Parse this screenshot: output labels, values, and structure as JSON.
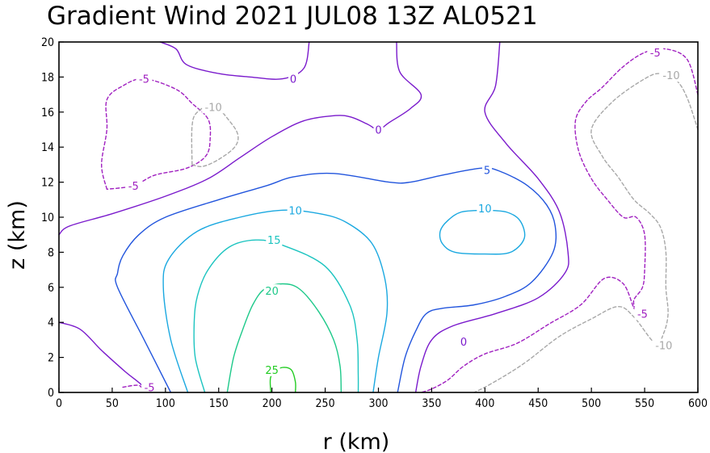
{
  "chart_data": {
    "type": "contour",
    "title": "Gradient Wind 2021 JUL08 13Z  AL0521",
    "xlabel": "r (km)",
    "ylabel": "z (km)",
    "xlim": [
      0,
      600
    ],
    "ylim": [
      0,
      20
    ],
    "xticks": [
      0,
      50,
      100,
      150,
      200,
      250,
      300,
      350,
      400,
      450,
      500,
      550,
      600
    ],
    "yticks": [
      0,
      2,
      4,
      6,
      8,
      10,
      12,
      14,
      16,
      18,
      20
    ],
    "grid": false,
    "colors": {
      "c25": "#22cc22",
      "c20": "#1ec98a",
      "c15": "#1cc4c0",
      "c10": "#1aa8e0",
      "c5": "#2255dd",
      "c0": "#7a1acc",
      "cneg5": "#a020c0",
      "cneg10": "#a8a8a8"
    },
    "contours": [
      {
        "level": 25,
        "label": "25",
        "color": "#22cc22",
        "dashed": false,
        "points": [
          [
            199,
            0
          ],
          [
            199,
            0.9
          ],
          [
            208,
            1.4
          ],
          [
            218,
            1.3
          ],
          [
            222,
            0.6
          ],
          [
            222,
            0
          ]
        ],
        "labels": [
          {
            "x": 200,
            "y": 1.3
          }
        ]
      },
      {
        "level": 20,
        "label": "20",
        "color": "#1ec98a",
        "dashed": false,
        "points": [
          [
            158,
            0
          ],
          [
            164,
            2
          ],
          [
            172,
            3.5
          ],
          [
            182,
            5
          ],
          [
            193,
            5.9
          ],
          [
            210,
            6.2
          ],
          [
            226,
            5.9
          ],
          [
            244,
            4.6
          ],
          [
            258,
            3
          ],
          [
            264,
            1.5
          ],
          [
            265,
            0
          ]
        ],
        "labels": [
          {
            "x": 200,
            "y": 5.8
          }
        ]
      },
      {
        "level": 15,
        "label": "15",
        "color": "#1cc4c0",
        "dashed": false,
        "points": [
          [
            137,
            0
          ],
          [
            128,
            2
          ],
          [
            127,
            4
          ],
          [
            130,
            5.5
          ],
          [
            140,
            7
          ],
          [
            160,
            8.3
          ],
          [
            185,
            8.7
          ],
          [
            210,
            8.4
          ],
          [
            250,
            7.2
          ],
          [
            273,
            5
          ],
          [
            280,
            3
          ],
          [
            281,
            1
          ],
          [
            281,
            0
          ]
        ],
        "labels": [
          {
            "x": 202,
            "y": 8.7
          }
        ]
      },
      {
        "level": 10,
        "label": "10",
        "color": "#1aa8e0",
        "dashed": false,
        "points": [
          [
            121,
            0
          ],
          [
            105,
            3
          ],
          [
            98,
            6
          ],
          [
            103,
            7.6
          ],
          [
            130,
            9.2
          ],
          [
            170,
            10
          ],
          [
            210,
            10.4
          ],
          [
            245,
            10.2
          ],
          [
            270,
            9.7
          ],
          [
            294,
            8.5
          ],
          [
            306,
            6.5
          ],
          [
            308,
            4.5
          ],
          [
            300,
            2
          ],
          [
            295,
            0
          ]
        ],
        "labels": [
          {
            "x": 222,
            "y": 10.4
          }
        ]
      },
      {
        "level": 10,
        "label": "10",
        "color": "#1aa8e0",
        "dashed": false,
        "points": [
          [
            400,
            10.4
          ],
          [
            378,
            10.3
          ],
          [
            365,
            9.8
          ],
          [
            358,
            9.2
          ],
          [
            360,
            8.5
          ],
          [
            372,
            8
          ],
          [
            400,
            7.9
          ],
          [
            424,
            8
          ],
          [
            437,
            8.8
          ],
          [
            433,
            9.8
          ],
          [
            420,
            10.3
          ],
          [
            400,
            10.4
          ]
        ],
        "labels": [
          {
            "x": 400,
            "y": 10.5
          }
        ]
      },
      {
        "level": 5,
        "label": "5",
        "color": "#2255dd",
        "dashed": false,
        "points": [
          [
            105,
            0
          ],
          [
            80,
            3
          ],
          [
            55,
            6
          ],
          [
            55,
            6.8
          ],
          [
            60,
            7.8
          ],
          [
            75,
            9
          ],
          [
            100,
            10
          ],
          [
            150,
            11
          ],
          [
            195,
            11.8
          ],
          [
            220,
            12.3
          ],
          [
            258,
            12.5
          ],
          [
            310,
            12
          ],
          [
            330,
            12
          ],
          [
            360,
            12.4
          ],
          [
            397,
            12.8
          ],
          [
            415,
            12.6
          ],
          [
            440,
            11.8
          ],
          [
            458,
            10.7
          ],
          [
            466,
            9.5
          ],
          [
            464,
            8
          ],
          [
            444,
            6.3
          ],
          [
            420,
            5.5
          ],
          [
            390,
            5
          ],
          [
            360,
            4.8
          ],
          [
            345,
            4.5
          ],
          [
            335,
            3.5
          ],
          [
            325,
            2
          ],
          [
            318,
            0
          ]
        ],
        "labels": [
          {
            "x": 402,
            "y": 12.7
          }
        ]
      },
      {
        "level": 0,
        "label": "0",
        "color": "#7a1acc",
        "dashed": false,
        "points": [
          [
            0,
            9
          ],
          [
            10,
            9.5
          ],
          [
            50,
            10.2
          ],
          [
            100,
            11.2
          ],
          [
            140,
            12.2
          ],
          [
            170,
            13.4
          ],
          [
            200,
            14.6
          ],
          [
            230,
            15.5
          ],
          [
            260,
            15.8
          ],
          [
            275,
            15.7
          ],
          [
            290,
            15.3
          ],
          [
            300,
            15
          ],
          [
            310,
            15.4
          ],
          [
            330,
            16.2
          ],
          [
            340,
            17
          ],
          [
            320,
            18.3
          ],
          [
            317,
            20
          ]
        ],
        "labels": [
          {
            "x": 300,
            "y": 15
          }
        ]
      },
      {
        "level": 0,
        "label": "0",
        "color": "#7a1acc",
        "dashed": false,
        "points": [
          [
            0,
            4
          ],
          [
            20,
            3.6
          ],
          [
            40,
            2.4
          ],
          [
            62,
            1.2
          ],
          [
            78,
            0.4
          ],
          [
            80,
            0
          ]
        ],
        "labels": []
      },
      {
        "level": 0,
        "label": "0",
        "color": "#7a1acc",
        "dashed": false,
        "points": [
          [
            95,
            20
          ],
          [
            110,
            19.6
          ],
          [
            120,
            18.7
          ],
          [
            150,
            18.2
          ],
          [
            180,
            18
          ],
          [
            210,
            17.9
          ],
          [
            230,
            18.5
          ],
          [
            235,
            20
          ]
        ],
        "labels": [
          {
            "x": 220,
            "y": 17.9
          }
        ]
      },
      {
        "level": 0,
        "label": "0",
        "color": "#7a1acc",
        "dashed": false,
        "points": [
          [
            414,
            20
          ],
          [
            410,
            17.5
          ],
          [
            400,
            16
          ],
          [
            420,
            14.2
          ],
          [
            450,
            12.2
          ],
          [
            470,
            10.3
          ],
          [
            478,
            8
          ],
          [
            475,
            6.8
          ],
          [
            450,
            5.4
          ],
          [
            410,
            4.5
          ],
          [
            370,
            3.8
          ],
          [
            350,
            3
          ],
          [
            340,
            1.5
          ],
          [
            335,
            0
          ]
        ],
        "labels": [
          {
            "x": 380,
            "y": 2.9
          }
        ]
      },
      {
        "level": -5,
        "label": "-5",
        "color": "#a020c0",
        "dashed": true,
        "points": [
          [
            45,
            11.6
          ],
          [
            40,
            13
          ],
          [
            45,
            15
          ],
          [
            45,
            16.7
          ],
          [
            60,
            17.5
          ],
          [
            80,
            17.9
          ],
          [
            110,
            17.3
          ],
          [
            125,
            16.5
          ],
          [
            140,
            15.6
          ],
          [
            142,
            14.5
          ],
          [
            138,
            13.5
          ],
          [
            120,
            12.8
          ],
          [
            90,
            12.4
          ],
          [
            70,
            11.8
          ],
          [
            45,
            11.6
          ]
        ],
        "labels": [
          {
            "x": 70,
            "y": 11.8
          },
          {
            "x": 80,
            "y": 17.9
          }
        ]
      },
      {
        "level": -5,
        "label": "-5",
        "color": "#a020c0",
        "dashed": true,
        "points": [
          [
            600,
            17
          ],
          [
            590,
            19
          ],
          [
            570,
            19.6
          ],
          [
            550,
            19.4
          ],
          [
            530,
            18.6
          ],
          [
            510,
            17.4
          ],
          [
            495,
            16.6
          ],
          [
            485,
            15.5
          ],
          [
            488,
            13.8
          ],
          [
            500,
            12.2
          ],
          [
            515,
            11
          ],
          [
            530,
            10
          ],
          [
            542,
            10
          ],
          [
            550,
            9
          ],
          [
            550,
            7
          ],
          [
            548,
            6
          ],
          [
            540,
            5.3
          ],
          [
            540,
            4.8
          ],
          [
            530,
            6.2
          ],
          [
            512,
            6.5
          ],
          [
            490,
            5
          ],
          [
            460,
            3.9
          ],
          [
            430,
            2.8
          ],
          [
            400,
            2.2
          ],
          [
            380,
            1.5
          ],
          [
            365,
            0.7
          ],
          [
            350,
            0.2
          ],
          [
            340,
            0
          ]
        ],
        "labels": [
          {
            "x": 560,
            "y": 19.4
          },
          {
            "x": 548,
            "y": 4.5
          }
        ]
      },
      {
        "level": -5,
        "label": "-5",
        "color": "#a020c0",
        "dashed": true,
        "points": [
          [
            60,
            0.3
          ],
          [
            75,
            0.4
          ],
          [
            80,
            0
          ]
        ],
        "labels": [
          {
            "x": 85,
            "y": 0.3
          }
        ]
      },
      {
        "level": -10,
        "label": "-10",
        "color": "#a8a8a8",
        "dashed": true,
        "points": [
          [
            125,
            13
          ],
          [
            125,
            15.2
          ],
          [
            130,
            16
          ],
          [
            145,
            16.4
          ],
          [
            160,
            15.5
          ],
          [
            168,
            14.7
          ],
          [
            165,
            14
          ],
          [
            150,
            13.3
          ],
          [
            135,
            12.9
          ],
          [
            125,
            13
          ]
        ],
        "labels": [
          {
            "x": 145,
            "y": 16.3
          }
        ]
      },
      {
        "level": -10,
        "label": "-10",
        "color": "#a8a8a8",
        "dashed": true,
        "points": [
          [
            600,
            15
          ],
          [
            590,
            16.8
          ],
          [
            580,
            17.8
          ],
          [
            565,
            18.2
          ],
          [
            550,
            17.9
          ],
          [
            520,
            16.6
          ],
          [
            500,
            15
          ],
          [
            510,
            13.5
          ],
          [
            525,
            12.3
          ],
          [
            540,
            11
          ],
          [
            555,
            10.2
          ],
          [
            565,
            9.4
          ],
          [
            570,
            8
          ],
          [
            570,
            6
          ],
          [
            572,
            4.5
          ],
          [
            568,
            3.4
          ],
          [
            560,
            2.8
          ],
          [
            540,
            4.3
          ],
          [
            525,
            4.9
          ],
          [
            500,
            4.2
          ],
          [
            470,
            3.2
          ],
          [
            440,
            1.8
          ],
          [
            420,
            1
          ],
          [
            400,
            0.3
          ],
          [
            390,
            0
          ]
        ],
        "labels": [
          {
            "x": 575,
            "y": 18.1
          },
          {
            "x": 568,
            "y": 2.7
          }
        ]
      }
    ]
  }
}
